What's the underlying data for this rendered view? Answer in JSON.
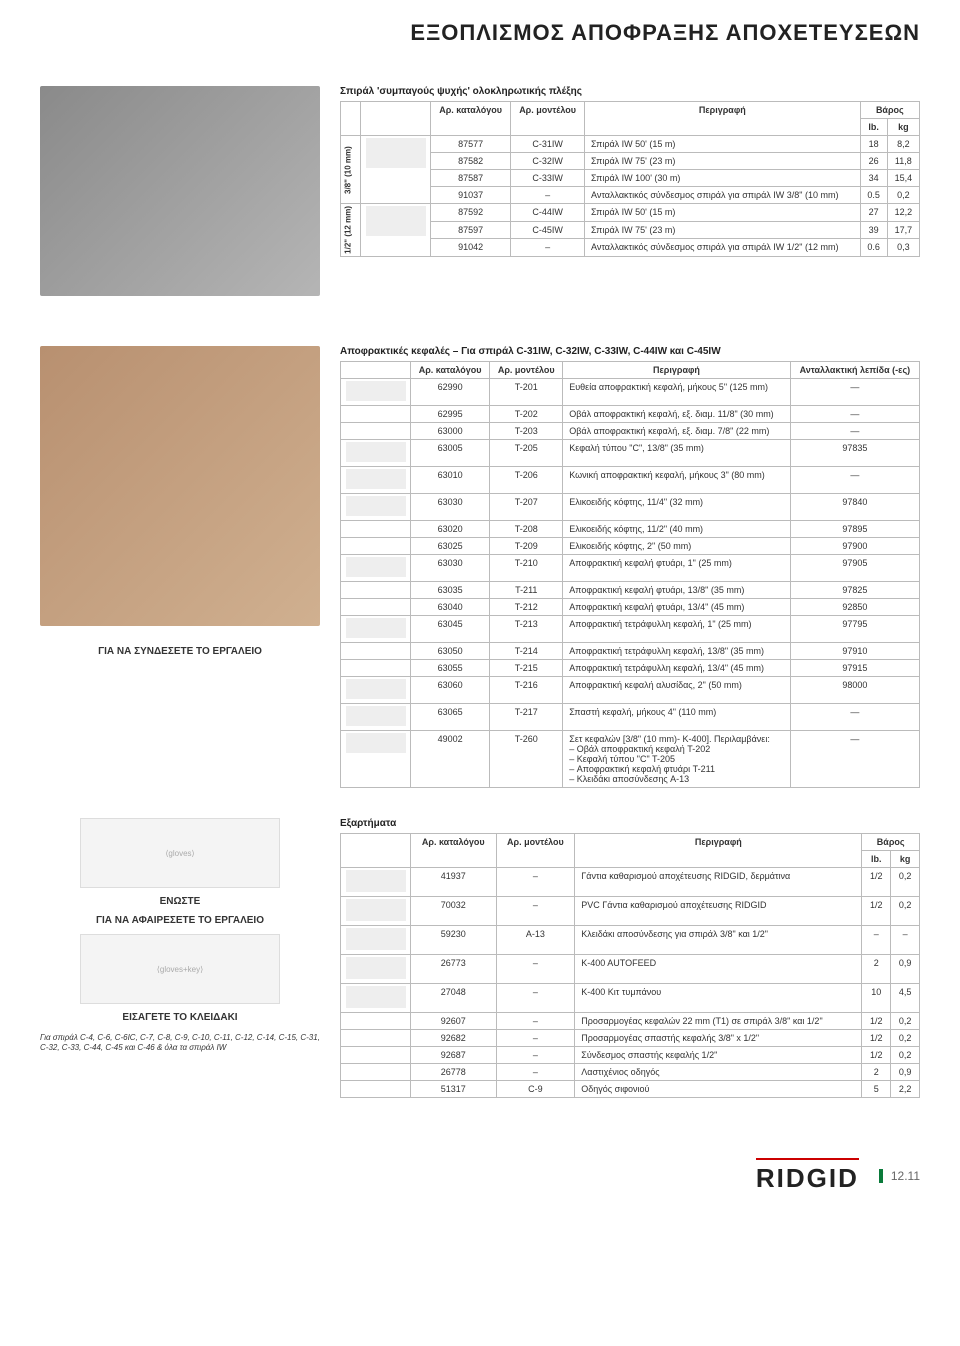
{
  "page_title": "ΕΞΟΠΛΙΣΜΟΣ ΑΠΟΦΡΑΞΗΣ ΑΠΟΧΕΤΕΥΣΕΩΝ",
  "table1": {
    "title": "Σπιράλ 'συμπαγούς ψυχής' ολοκληρωτικής πλέξης",
    "headers": {
      "cat": "Αρ. καταλόγου",
      "model": "Αρ. μοντέλου",
      "desc": "Περιγραφή",
      "weight": "Βάρος",
      "lb": "lb.",
      "kg": "kg"
    },
    "group1_label": "3/8\" (10 mm)",
    "group1": [
      {
        "cat": "87577",
        "model": "C-31IW",
        "desc": "Σπιράλ IW 50' (15 m)",
        "lb": "18",
        "kg": "8,2"
      },
      {
        "cat": "87582",
        "model": "C-32IW",
        "desc": "Σπιράλ IW 75' (23 m)",
        "lb": "26",
        "kg": "11,8"
      },
      {
        "cat": "87587",
        "model": "C-33IW",
        "desc": "Σπιράλ IW 100' (30 m)",
        "lb": "34",
        "kg": "15,4"
      },
      {
        "cat": "91037",
        "model": "–",
        "desc": "Ανταλλακτικός σύνδεσμος σπιράλ για σπιράλ IW 3/8\" (10 mm)",
        "lb": "0.5",
        "kg": "0,2"
      }
    ],
    "group2_label": "1/2\" (12 mm)",
    "group2": [
      {
        "cat": "87592",
        "model": "C-44IW",
        "desc": "Σπιράλ IW 50' (15 m)",
        "lb": "27",
        "kg": "12,2"
      },
      {
        "cat": "87597",
        "model": "C-45IW",
        "desc": "Σπιράλ IW 75' (23 m)",
        "lb": "39",
        "kg": "17,7"
      },
      {
        "cat": "91042",
        "model": "–",
        "desc": "Ανταλλακτικός σύνδεσμος σπιράλ για σπιράλ IW 1/2\" (12 mm)",
        "lb": "0.6",
        "kg": "0,3"
      }
    ]
  },
  "table2": {
    "title": "Αποφρακτικές κεφαλές – Για σπιράλ C-31IW, C-32IW, C-33IW, C-44IW και C-45IW",
    "headers": {
      "cat": "Αρ. καταλόγου",
      "model": "Αρ. μοντέλου",
      "desc": "Περιγραφή",
      "blade": "Ανταλλακτική λεπίδα (-ες)"
    },
    "rows": [
      {
        "cat": "62990",
        "model": "T-201",
        "desc": "Ευθεία αποφρακτική κεφαλή, μήκους 5\" (125 mm)",
        "blade": "—"
      },
      {
        "cat": "62995",
        "model": "T-202",
        "desc": "Οβάλ αποφρακτική κεφαλή, εξ. διαμ. 11/8\" (30 mm)",
        "blade": "—"
      },
      {
        "cat": "63000",
        "model": "T-203",
        "desc": "Οβάλ αποφρακτική κεφαλή, εξ. διαμ. 7/8\" (22 mm)",
        "blade": "—"
      },
      {
        "sep": true,
        "cat": "63005",
        "model": "T-205",
        "desc": "Κεφαλή τύπου \"C\", 13/8\" (35 mm)",
        "blade": "97835"
      },
      {
        "sep": true,
        "cat": "63010",
        "model": "T-206",
        "desc": "Κωνική αποφρακτική κεφαλή, μήκους 3\" (80 mm)",
        "blade": "—"
      },
      {
        "sep": true,
        "cat": "63030",
        "model": "T-207",
        "desc": "Ελικοειδής κόφτης, 11/4\" (32 mm)",
        "blade": "97840"
      },
      {
        "cat": "63020",
        "model": "T-208",
        "desc": "Ελικοειδής κόφτης, 11/2\" (40 mm)",
        "blade": "97895"
      },
      {
        "cat": "63025",
        "model": "T-209",
        "desc": "Ελικοειδής κόφτης, 2\" (50 mm)",
        "blade": "97900"
      },
      {
        "sep": true,
        "cat": "63030",
        "model": "T-210",
        "desc": "Αποφρακτική κεφαλή φτυάρι, 1\" (25 mm)",
        "blade": "97905"
      },
      {
        "cat": "63035",
        "model": "T-211",
        "desc": "Αποφρακτική κεφαλή φτυάρι, 13/8\" (35 mm)",
        "blade": "97825"
      },
      {
        "cat": "63040",
        "model": "T-212",
        "desc": "Αποφρακτική κεφαλή φτυάρι, 13/4\" (45 mm)",
        "blade": "92850"
      },
      {
        "sep": true,
        "cat": "63045",
        "model": "T-213",
        "desc": "Αποφρακτική τετράφυλλη κεφαλή, 1\" (25 mm)",
        "blade": "97795"
      },
      {
        "cat": "63050",
        "model": "T-214",
        "desc": "Αποφρακτική τετράφυλλη κεφαλή, 13/8\" (35 mm)",
        "blade": "97910"
      },
      {
        "cat": "63055",
        "model": "T-215",
        "desc": "Αποφρακτική τετράφυλλη κεφαλή, 13/4\" (45 mm)",
        "blade": "97915"
      },
      {
        "sep": true,
        "cat": "63060",
        "model": "T-216",
        "desc": "Αποφρακτική κεφαλή αλυσίδας, 2\" (50 mm)",
        "blade": "98000"
      },
      {
        "sep": true,
        "cat": "63065",
        "model": "T-217",
        "desc": "Σπαστή κεφαλή, μήκους 4\" (110 mm)",
        "blade": "—"
      },
      {
        "sep": true,
        "cat": "49002",
        "model": "T-260",
        "desc": "Σετ κεφαλών [3/8\" (10 mm)- K-400]. Περιλαμβάνει:\n– Οβάλ αποφρακτική κεφαλή T-202\n– Κεφαλή τύπου \"C\" T-205\n– Αποφρακτική κεφαλή φτυάρι T-211\n– Κλειδάκι αποσύνδεσης A-13",
        "blade": "—"
      }
    ]
  },
  "captions": {
    "connect": "ΓΙΑ ΝΑ ΣΥΝΔΕΣΕΤΕ ΤΟ ΕΡΓΑΛΕΙΟ",
    "join": "ΕΝΩΣΤΕ",
    "remove": "ΓΙΑ ΝΑ ΑΦΑΙΡΕΣΕΤΕ ΤΟ ΕΡΓΑΛΕΙΟ",
    "insert": "ΕΙΣΑΓΕΤΕ ΤΟ ΚΛΕΙΔΑΚΙ",
    "footnote": "Για σπιράλ C-4, C-6, C-6IC, C-7, C-8, C-9, C-10, C-11, C-12, C-14, C-15, C-31, C-32, C-33, C-44, C-45 και C-46 & όλα τα σπιράλ IW"
  },
  "table3": {
    "title": "Εξαρτήματα",
    "headers": {
      "cat": "Αρ. καταλόγου",
      "model": "Αρ. μοντέλου",
      "desc": "Περιγραφή",
      "weight": "Βάρος",
      "lb": "lb.",
      "kg": "kg"
    },
    "rows": [
      {
        "cat": "41937",
        "model": "–",
        "desc": "Γάντια καθαρισμού αποχέτευσης RIDGID, δερμάτινα",
        "lb": "1/2",
        "kg": "0,2"
      },
      {
        "sep": true,
        "cat": "70032",
        "model": "–",
        "desc": "PVC Γάντια καθαρισμού αποχέτευσης RIDGID",
        "lb": "1/2",
        "kg": "0,2"
      },
      {
        "sep": true,
        "cat": "59230",
        "model": "A-13",
        "desc": "Κλειδάκι αποσύνδεσης για σπιράλ 3/8\" και 1/2\"",
        "lb": "–",
        "kg": "–"
      },
      {
        "sep": true,
        "cat": "26773",
        "model": "–",
        "desc": "K-400 AUTOFEED",
        "lb": "2",
        "kg": "0,9"
      },
      {
        "sep": true,
        "cat": "27048",
        "model": "–",
        "desc": "K-400 Κιτ τυμπάνου",
        "lb": "10",
        "kg": "4,5"
      },
      {
        "cat": "92607",
        "model": "–",
        "desc": "Προσαρμογέας κεφαλών 22 mm (T1) σε σπιράλ 3/8\" και 1/2\"",
        "lb": "1/2",
        "kg": "0,2"
      },
      {
        "cat": "92682",
        "model": "–",
        "desc": "Προσαρμογέας σπαστής κεφαλής 3/8\" x 1/2\"",
        "lb": "1/2",
        "kg": "0,2"
      },
      {
        "cat": "92687",
        "model": "–",
        "desc": "Σύνδεσμος σπαστής κεφαλής 1/2\"",
        "lb": "1/2",
        "kg": "0,2"
      },
      {
        "cat": "26778",
        "model": "–",
        "desc": "Λαστιχένιος οδηγός",
        "lb": "2",
        "kg": "0,9"
      },
      {
        "cat": "51317",
        "model": "C-9",
        "desc": "Οδηγός σιφονιού",
        "lb": "5",
        "kg": "2,2"
      }
    ]
  },
  "footer": {
    "logo": "RIDGID",
    "page": "12.11"
  }
}
